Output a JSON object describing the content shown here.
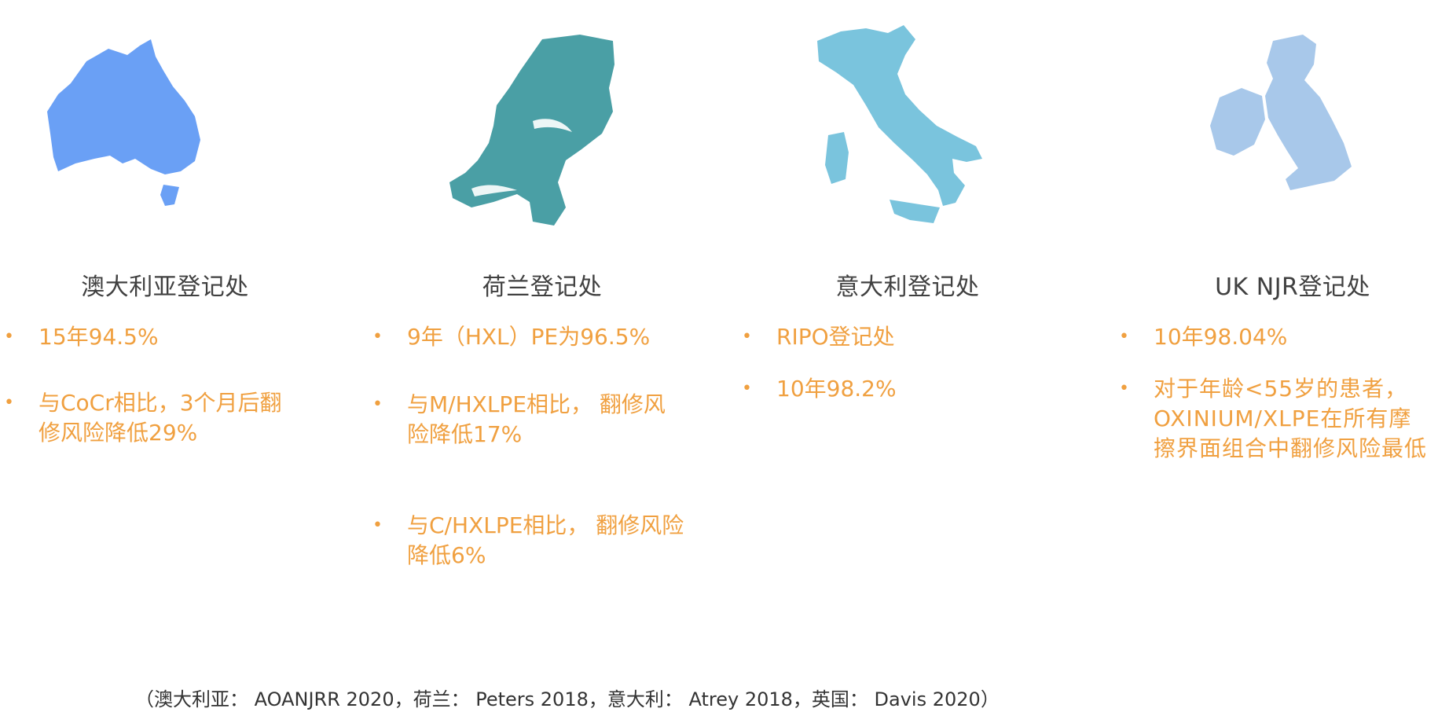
{
  "colors": {
    "accent": "#F0A040",
    "title_text": "#404040",
    "australia_map": "#6AA0F5",
    "netherlands_map": "#4A9FA5",
    "italy_map": "#7AC4DD",
    "uk_map": "#A8C8EA"
  },
  "columns": [
    {
      "map_name": "australia-map",
      "title": "澳大利亚登记处",
      "bullets": [
        "15年94.5%",
        "与CoCr相比，3个月后翻修风险降低29%"
      ]
    },
    {
      "map_name": "netherlands-map",
      "title": "荷兰登记处",
      "bullets": [
        "9年（HXL）PE为96.5%",
        "与M/HXLPE相比， 翻修风险降低17%",
        "与C/HXLPE相比， 翻修风险降低6%"
      ]
    },
    {
      "map_name": "italy-map",
      "title": "意大利登记处",
      "bullets": [
        "RIPO登记处",
        "10年98.2%"
      ]
    },
    {
      "map_name": "uk-map",
      "title": "UK NJR登记处",
      "bullets": [
        "10年98.04%",
        "对于年龄<55岁的患者，OXINIUM/XLPE在所有摩擦界面组合中翻修风险最低"
      ]
    }
  ],
  "citation": "（澳大利亚： AOANJRR 2020，荷兰： Peters 2018，意大利： Atrey 2018，英国： Davis 2020）"
}
